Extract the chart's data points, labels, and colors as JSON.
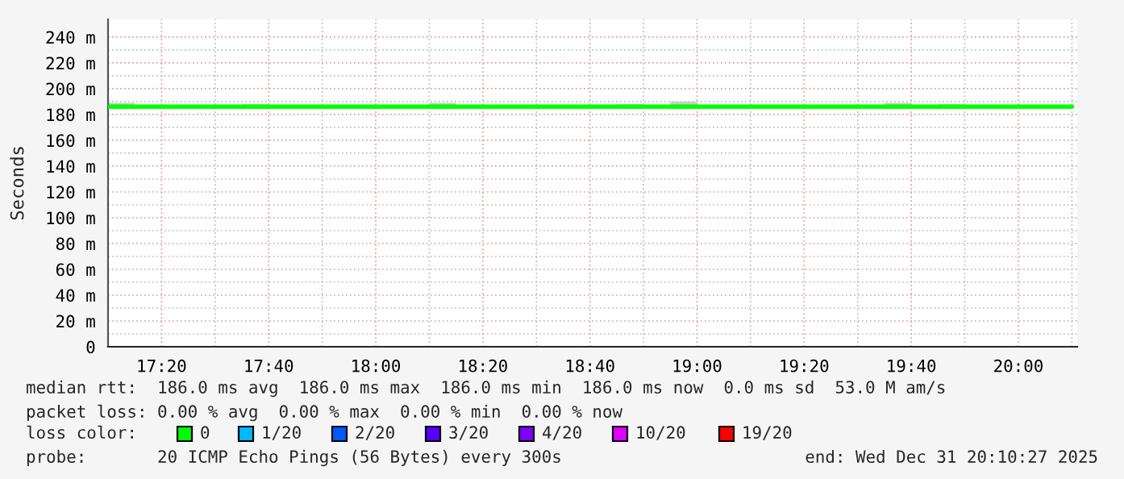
{
  "chart_data": {
    "type": "step",
    "ylabel": "Seconds",
    "x": [
      17.1667,
      17.25,
      17.3333,
      17.4167,
      17.5,
      17.5833,
      17.6667,
      17.75,
      17.8333,
      17.9167,
      18.0,
      18.0833,
      18.1667,
      18.25,
      18.3333,
      18.4167,
      18.5,
      18.5833,
      18.6667,
      18.75,
      18.8333,
      18.9167,
      19.0,
      19.0833,
      19.1667,
      19.25,
      19.3333,
      19.4167,
      19.5,
      19.5833,
      19.6667,
      19.75,
      19.8333,
      19.9167,
      20.0,
      20.0833,
      20.1667
    ],
    "series": [
      {
        "color": "#00ff00",
        "values": [
          186,
          186,
          186,
          186,
          186,
          186,
          186,
          186,
          186,
          186,
          186,
          186,
          186,
          186,
          186,
          186,
          186,
          186,
          186,
          186,
          186,
          186,
          186,
          186,
          186,
          186,
          186,
          186,
          186,
          186,
          186,
          186,
          186,
          186,
          186,
          186,
          186
        ],
        "lower": [
          186,
          186,
          186,
          186,
          186,
          186,
          186,
          186,
          186,
          186,
          186,
          186,
          186,
          186,
          186,
          186,
          186,
          186,
          186,
          186,
          186,
          186,
          186,
          186,
          186,
          186,
          186,
          186,
          186,
          186,
          186,
          186,
          186,
          186,
          186,
          186,
          186
        ],
        "upper": [
          189,
          186,
          186,
          186,
          186,
          188,
          186,
          186,
          187,
          187,
          186,
          186,
          189,
          186,
          186,
          186,
          186,
          186,
          186,
          188,
          186,
          190,
          186,
          187,
          186,
          187,
          186,
          186,
          186,
          189,
          186,
          188,
          186,
          186,
          186,
          186,
          186
        ]
      }
    ],
    "xlim": [
      17.1667,
      20.1833
    ],
    "xticks": [
      {
        "value": 17.3333,
        "label": "17:20"
      },
      {
        "value": 17.6667,
        "label": "17:40"
      },
      {
        "value": 18.0,
        "label": "18:00"
      },
      {
        "value": 18.3333,
        "label": "18:20"
      },
      {
        "value": 18.6667,
        "label": "18:40"
      },
      {
        "value": 19.0,
        "label": "19:00"
      },
      {
        "value": 19.3333,
        "label": "19:20"
      },
      {
        "value": 19.6667,
        "label": "19:40"
      },
      {
        "value": 20.0,
        "label": "20:00"
      }
    ],
    "ylim": [
      0,
      253.7
    ],
    "yticks": [
      0,
      {
        "value": 20,
        "label": "20 m"
      },
      {
        "value": 40,
        "label": "40 m"
      },
      {
        "value": 60,
        "label": "60 m"
      },
      {
        "value": 80,
        "label": "80 m"
      },
      {
        "value": 100,
        "label": "100 m"
      },
      {
        "value": 120,
        "label": "120 m"
      },
      {
        "value": 140,
        "label": "140 m"
      },
      {
        "value": 160,
        "label": "160 m"
      },
      {
        "value": 180,
        "label": "180 m"
      },
      {
        "value": 200,
        "label": "200 m"
      },
      {
        "value": 220,
        "label": "220 m"
      },
      {
        "value": 240,
        "label": "240 m"
      }
    ],
    "grid": true,
    "annotations": [
      "median rtt:  186.0 ms avg  186.0 ms max  186.0 ms min  186.0 ms now  0.0 ms sd  53.0 M am/s",
      "packet loss: 0.00 % avg  0.00 % max  0.00 % min  0.00 % now",
      "loss color:",
      "0",
      "1/20",
      "2/20",
      "3/20",
      "4/20",
      "10/20",
      "19/20",
      "probe:       20 ICMP Echo Pings (56 Bytes) every 300s",
      "end: Wed Dec 31 20:10:27 2025"
    ]
  }
}
